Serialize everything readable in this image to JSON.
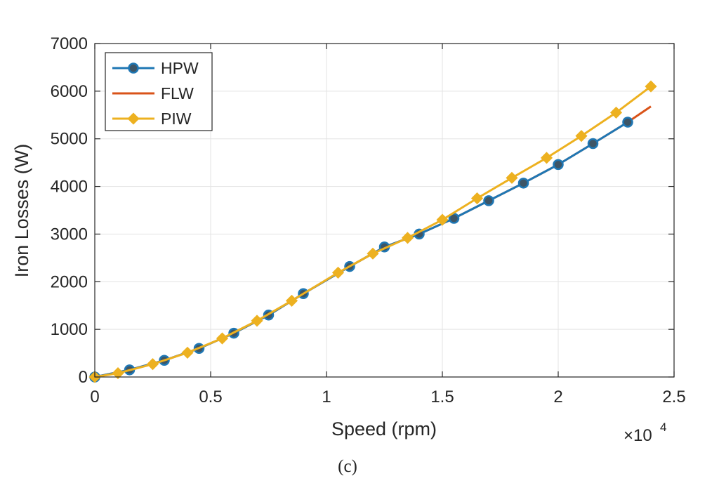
{
  "chart_data": {
    "type": "line",
    "xlabel": "Speed (rpm)",
    "ylabel": "Iron Losses (W)",
    "x_exponent_label": "×10",
    "x_exponent_power": "4",
    "caption": "(c)",
    "xlim": [
      0,
      25000
    ],
    "ylim": [
      0,
      7000
    ],
    "x_ticks": [
      0,
      5000,
      10000,
      15000,
      20000,
      25000
    ],
    "x_tick_labels": [
      "0",
      "0.5",
      "1",
      "1.5",
      "2",
      "2.5"
    ],
    "y_ticks": [
      0,
      1000,
      2000,
      3000,
      4000,
      5000,
      6000,
      7000
    ],
    "y_tick_labels": [
      "0",
      "1000",
      "2000",
      "3000",
      "4000",
      "5000",
      "6000",
      "7000"
    ],
    "grid": true,
    "legend_position": "top-left",
    "series": [
      {
        "name": "HPW",
        "color": "#1f77b4",
        "marker": "circle",
        "x": [
          0,
          1500,
          3000,
          4500,
          6000,
          7500,
          9000,
          11000,
          12500,
          14000,
          15500,
          17000,
          18500,
          20000,
          21500,
          23000
        ],
        "y": [
          0,
          150,
          350,
          600,
          920,
          1300,
          1750,
          2320,
          2730,
          3000,
          3330,
          3700,
          4070,
          4460,
          4900,
          5350
        ]
      },
      {
        "name": "FLW",
        "color": "#d95319",
        "marker": "none",
        "x": [
          0,
          1500,
          3000,
          4500,
          6000,
          7500,
          9000,
          11000,
          12500,
          14000,
          15500,
          17000,
          18500,
          20000,
          21500,
          23000,
          24000
        ],
        "y": [
          0,
          150,
          350,
          600,
          920,
          1300,
          1750,
          2320,
          2730,
          3000,
          3330,
          3700,
          4070,
          4460,
          4900,
          5350,
          5680
        ]
      },
      {
        "name": "PIW",
        "color": "#edb120",
        "marker": "diamond",
        "x": [
          0,
          1000,
          2500,
          4000,
          5500,
          7000,
          8500,
          10500,
          12000,
          13500,
          15000,
          16500,
          18000,
          19500,
          21000,
          22500,
          24000
        ],
        "y": [
          0,
          80,
          270,
          510,
          810,
          1180,
          1600,
          2190,
          2590,
          2920,
          3300,
          3750,
          4180,
          4600,
          5060,
          5550,
          6100
        ]
      }
    ]
  }
}
